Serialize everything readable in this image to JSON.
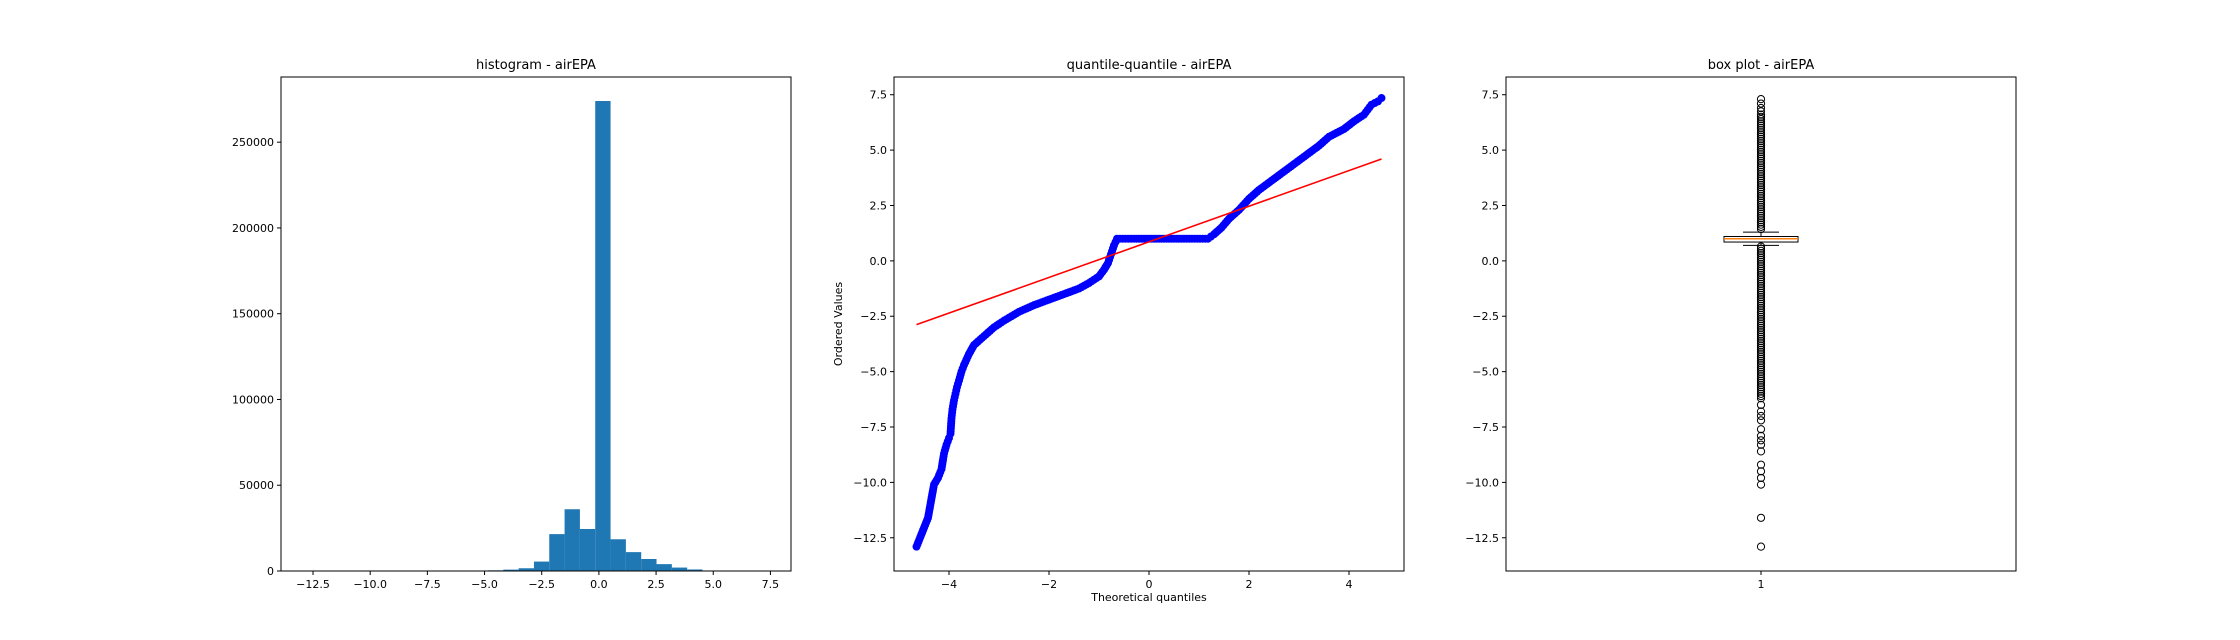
{
  "chart_data": [
    {
      "type": "histogram",
      "title": "histogram - airEPA",
      "xlabel": "",
      "ylabel": "",
      "xlim": [
        -13.9,
        8.4
      ],
      "ylim": [
        0,
        288000
      ],
      "xticks": [
        -12.5,
        -10.0,
        -7.5,
        -5.0,
        -2.5,
        0.0,
        2.5,
        5.0,
        7.5
      ],
      "yticks": [
        0,
        50000,
        100000,
        150000,
        200000,
        250000
      ],
      "bar_color": "#1f77b4",
      "bin_edges": [
        -12.89,
        -12.22,
        -11.55,
        -10.88,
        -10.21,
        -9.54,
        -8.87,
        -8.2,
        -7.53,
        -6.86,
        -6.19,
        -5.52,
        -4.85,
        -4.18,
        -3.51,
        -2.84,
        -2.17,
        -1.5,
        -0.83,
        -0.16,
        0.51,
        1.18,
        1.85,
        2.52,
        3.19,
        3.86,
        4.53,
        5.2,
        5.87,
        6.54,
        7.21
      ],
      "counts": [
        5,
        0,
        0,
        0,
        0,
        0,
        0,
        10,
        20,
        40,
        80,
        200,
        400,
        800,
        1600,
        5500,
        21500,
        36000,
        24500,
        274000,
        18500,
        11000,
        7000,
        4000,
        2000,
        900,
        300,
        100,
        20,
        5
      ]
    },
    {
      "type": "scatter",
      "title": "quantile-quantile - airEPA",
      "xlabel": "Theoretical quantiles",
      "ylabel": "Ordered Values",
      "xlim": [
        -5.1,
        5.1
      ],
      "ylim": [
        -14.0,
        8.3
      ],
      "xticks": [
        -4,
        -2,
        0,
        2,
        4
      ],
      "yticks": [
        -12.5,
        -10.0,
        -7.5,
        -5.0,
        -2.5,
        0.0,
        2.5,
        5.0,
        7.5
      ],
      "marker_color": "#0000ff",
      "line_color": "#ff0000",
      "fit_line": {
        "x": [
          -4.65,
          4.65
        ],
        "y": [
          -2.88,
          4.6
        ]
      },
      "points": [
        [
          -4.65,
          -12.9
        ],
        [
          -4.42,
          -11.6
        ],
        [
          -4.3,
          -10.1
        ],
        [
          -4.22,
          -9.8
        ],
        [
          -4.15,
          -9.4
        ],
        [
          -4.1,
          -8.7
        ],
        [
          -4.05,
          -8.3
        ],
        [
          -4.0,
          -8.0
        ],
        [
          -3.97,
          -7.8
        ],
        [
          -3.95,
          -7.1
        ],
        [
          -3.93,
          -6.7
        ],
        [
          -3.9,
          -6.3
        ],
        [
          -3.87,
          -6.0
        ],
        [
          -3.84,
          -5.7
        ],
        [
          -3.8,
          -5.4
        ],
        [
          -3.75,
          -5.0
        ],
        [
          -3.7,
          -4.7
        ],
        [
          -3.6,
          -4.2
        ],
        [
          -3.5,
          -3.8
        ],
        [
          -3.3,
          -3.4
        ],
        [
          -3.1,
          -3.0
        ],
        [
          -2.9,
          -2.7
        ],
        [
          -2.6,
          -2.3
        ],
        [
          -2.3,
          -2.0
        ],
        [
          -2.0,
          -1.75
        ],
        [
          -1.7,
          -1.5
        ],
        [
          -1.4,
          -1.25
        ],
        [
          -1.2,
          -1.0
        ],
        [
          -1.0,
          -0.7
        ],
        [
          -0.9,
          -0.4
        ],
        [
          -0.82,
          -0.1
        ],
        [
          -0.76,
          0.3
        ],
        [
          -0.7,
          0.7
        ],
        [
          -0.64,
          1.0
        ],
        [
          -0.3,
          1.0
        ],
        [
          0.0,
          1.0
        ],
        [
          0.4,
          1.0
        ],
        [
          0.8,
          1.0
        ],
        [
          1.18,
          1.0
        ],
        [
          1.3,
          1.2
        ],
        [
          1.45,
          1.5
        ],
        [
          1.6,
          1.9
        ],
        [
          1.8,
          2.3
        ],
        [
          2.0,
          2.8
        ],
        [
          2.2,
          3.2
        ],
        [
          2.5,
          3.7
        ],
        [
          2.8,
          4.2
        ],
        [
          3.1,
          4.7
        ],
        [
          3.4,
          5.2
        ],
        [
          3.6,
          5.6
        ],
        [
          3.9,
          5.95
        ],
        [
          4.1,
          6.3
        ],
        [
          4.3,
          6.6
        ],
        [
          4.45,
          7.05
        ],
        [
          4.58,
          7.2
        ],
        [
          4.65,
          7.35
        ]
      ]
    },
    {
      "type": "box",
      "title": "box plot - airEPA",
      "xlabel": "",
      "ylabel": "",
      "xlim": [
        0.5,
        1.5
      ],
      "ylim": [
        -14.0,
        8.3
      ],
      "categories": [
        "1"
      ],
      "yticks": [
        -12.5,
        -10.0,
        -7.5,
        -5.0,
        -2.5,
        0.0,
        2.5,
        5.0,
        7.5
      ],
      "median_color": "#ff7f0e",
      "box": {
        "q1": 0.85,
        "median": 1.0,
        "q3": 1.1,
        "whisker_low": 0.7,
        "whisker_high": 1.3
      },
      "outlier_dense_ranges": [
        [
          1.35,
          6.6
        ],
        [
          -6.3,
          0.65
        ]
      ],
      "outliers_sparse": [
        7.3,
        7.1,
        6.9,
        6.75,
        -6.5,
        -6.8,
        -7.0,
        -7.2,
        -7.6,
        -7.9,
        -8.1,
        -8.3,
        -8.6,
        -9.2,
        -9.5,
        -9.8,
        -10.1,
        -11.6,
        -12.9
      ]
    }
  ]
}
